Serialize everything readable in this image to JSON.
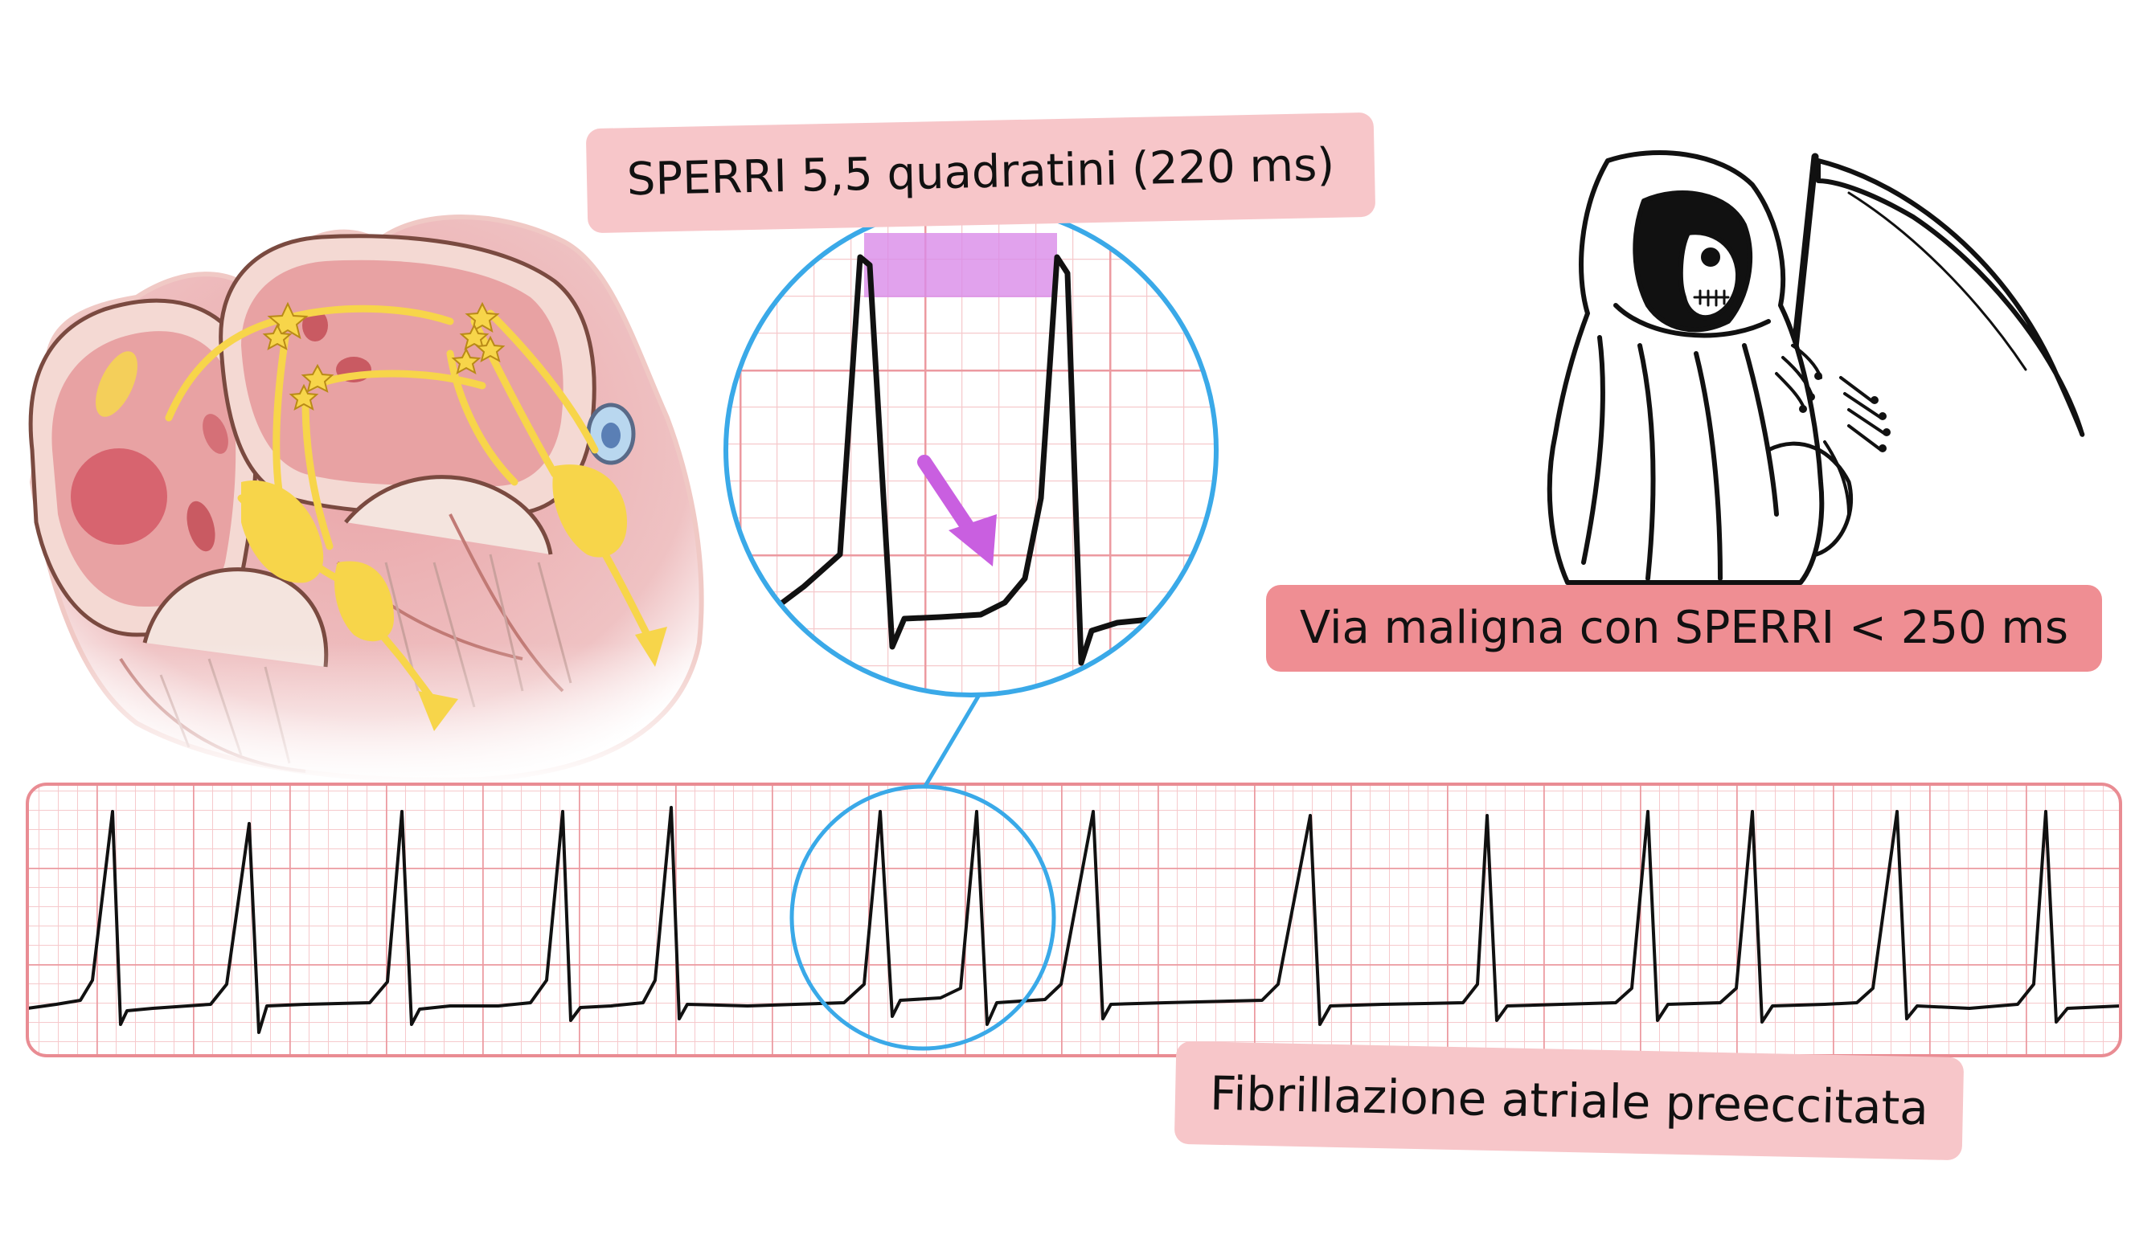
{
  "labels": {
    "sperri": "SPERRI 5,5 quadratini (220 ms)",
    "maligna": "Via maligna con SPERRI < 250 ms",
    "fibrillazione": "Fibrillazione atriale preeccitata"
  },
  "colors": {
    "ecg_grid_major": "#ec9aa0",
    "ecg_grid_minor": "#f6c9cc",
    "ecg_strip_border": "#e98c93",
    "ecg_trace": "#111111",
    "magnifier_ring": "#3aa9e8",
    "interval_highlight": "#d98be8",
    "arrow": "#c95fe0",
    "conduction_path": "#f7d54a",
    "label_light": "#f7c6c9",
    "label_strong": "#ef8e93"
  },
  "icons": {
    "heart": "heart-conduction-illustration",
    "reaper": "grim-reaper-icon"
  }
}
